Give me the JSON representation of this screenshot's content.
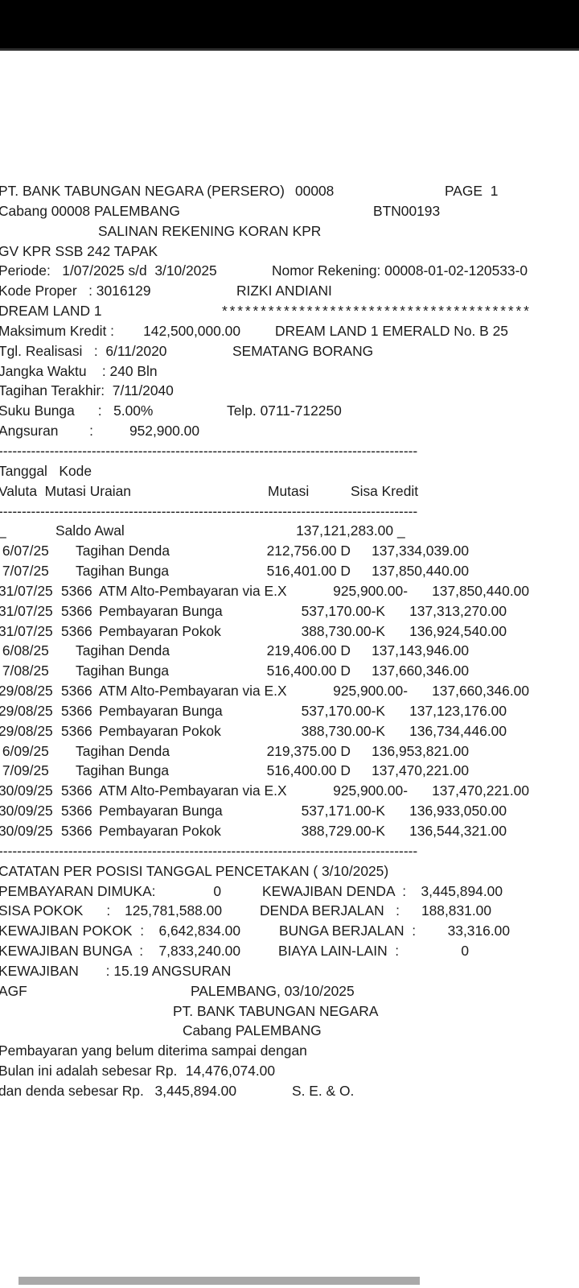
{
  "colors": {
    "status_bar": "#000000",
    "page_bg": "#ffffff",
    "text": "#1b1b1b",
    "scrollbar_thumb": "#a9a9a9"
  },
  "doc": {
    "header": {
      "bank_name": "PT. BANK TABUNGAN NEGARA (PERSERO)",
      "branch_code": "00008",
      "page_label": "PAGE  1",
      "branch_line": "Cabang 00008 PALEMBANG",
      "doc_code": "BTN00193",
      "title": "SALINAN REKENING KORAN KPR",
      "product_line": "GV KPR SSB 242 TAPAK",
      "periode": "Periode:   1/07/2025 s/d  3/10/2025",
      "nomor_rekening": "Nomor Rekening: 00008-01-02-120533-0",
      "kode_proper": "Kode Proper   : 3016129",
      "customer_name": "RIZKI ANDIANI",
      "project_name": "DREAM LAND 1",
      "stars": "****************************************",
      "maksimum_kredit_label": "Maksimum Kredit :",
      "maksimum_kredit_value": "142,500,000.00",
      "address_line1": "DREAM LAND 1 EMERALD No. B 25",
      "tgl_realisasi": "Tgl. Realisasi   :  6/11/2020",
      "address_line2": "SEMATANG BORANG",
      "jangka_waktu": "Jangka Waktu    : 240 Bln",
      "tagihan_terakhir": "Tagihan Terakhir:  7/11/2040",
      "suku_bunga": "Suku Bunga      :   5.00%",
      "telp": "Telp. 0711-712250",
      "angsuran_label": "Angsuran        :",
      "angsuran_value": "952,900.00"
    },
    "table": {
      "divider": "------------------------------------------------------------------------------------------",
      "col_header1": "Tanggal   Kode",
      "col_header2": "Valuta  Mutasi Uraian",
      "col_mutasi": "Mutasi",
      "col_sisa": "Sisa Kredit"
    },
    "transactions": [
      {
        "date": "",
        "kode": "",
        "uraian": "Saldo Awal",
        "mutasi": "",
        "sisa": "137,121,283.00",
        "prefix": "_",
        "suffix": "_",
        "type": "saldo"
      },
      {
        "date": " 6/07/25",
        "kode": "",
        "uraian": "Tagihan Denda",
        "mutasi": "212,756.00 D",
        "sisa": "137,334,039.00",
        "type": "tagihan"
      },
      {
        "date": " 7/07/25",
        "kode": "",
        "uraian": "Tagihan Bunga",
        "mutasi": "516,401.00 D",
        "sisa": "137,850,440.00",
        "type": "tagihan"
      },
      {
        "date": "31/07/25",
        "kode": "5366",
        "uraian": "ATM Alto-Pembayaran via E.X",
        "mutasi": "925,900.00-",
        "sisa": "137,850,440.00",
        "type": "atm"
      },
      {
        "date": "31/07/25",
        "kode": "5366",
        "uraian": "Pembayaran Bunga",
        "mutasi": "537,170.00-K",
        "sisa": "137,313,270.00",
        "type": "bayar"
      },
      {
        "date": "31/07/25",
        "kode": "5366",
        "uraian": "Pembayaran Pokok",
        "mutasi": "388,730.00-K",
        "sisa": "136,924,540.00",
        "type": "bayar"
      },
      {
        "date": " 6/08/25",
        "kode": "",
        "uraian": "Tagihan Denda",
        "mutasi": "219,406.00 D",
        "sisa": "137,143,946.00",
        "type": "tagihan"
      },
      {
        "date": " 7/08/25",
        "kode": "",
        "uraian": "Tagihan Bunga",
        "mutasi": "516,400.00 D",
        "sisa": "137,660,346.00",
        "type": "tagihan"
      },
      {
        "date": "29/08/25",
        "kode": "5366",
        "uraian": "ATM Alto-Pembayaran via E.X",
        "mutasi": "925,900.00-",
        "sisa": "137,660,346.00",
        "type": "atm"
      },
      {
        "date": "29/08/25",
        "kode": "5366",
        "uraian": "Pembayaran Bunga",
        "mutasi": "537,170.00-K",
        "sisa": "137,123,176.00",
        "type": "bayar"
      },
      {
        "date": "29/08/25",
        "kode": "5366",
        "uraian": "Pembayaran Pokok",
        "mutasi": "388,730.00-K",
        "sisa": "136,734,446.00",
        "type": "bayar"
      },
      {
        "date": " 6/09/25",
        "kode": "",
        "uraian": "Tagihan Denda",
        "mutasi": "219,375.00 D",
        "sisa": "136,953,821.00",
        "type": "tagihan"
      },
      {
        "date": " 7/09/25",
        "kode": "",
        "uraian": "Tagihan Bunga",
        "mutasi": "516,400.00 D",
        "sisa": "137,470,221.00",
        "type": "tagihan"
      },
      {
        "date": "30/09/25",
        "kode": "5366",
        "uraian": "ATM Alto-Pembayaran via E.X",
        "mutasi": "925,900.00-",
        "sisa": "137,470,221.00",
        "type": "atm"
      },
      {
        "date": "30/09/25",
        "kode": "5366",
        "uraian": "Pembayaran Bunga",
        "mutasi": "537,171.00-K",
        "sisa": "136,933,050.00",
        "type": "bayar"
      },
      {
        "date": "30/09/25",
        "kode": "5366",
        "uraian": "Pembayaran Pokok",
        "mutasi": "388,729.00-K",
        "sisa": "136,544,321.00",
        "type": "bayar"
      }
    ],
    "summary": {
      "catatan_title": "CATATAN PER POSISI TANGGAL PENCETAKAN ( 3/10/2025)",
      "pembayaran_dimuka_label": "PEMBAYARAN DIMUKA:",
      "pembayaran_dimuka_value": "0",
      "kewajiban_denda_label": "KEWAJIBAN DENDA  :",
      "kewajiban_denda_value": "3,445,894.00",
      "sisa_pokok_label": "SISA POKOK      :",
      "sisa_pokok_value": "125,781,588.00",
      "denda_berjalan_label": "DENDA BERJALAN   :",
      "denda_berjalan_value": "188,831.00",
      "kewajiban_pokok_label": "KEWAJIBAN POKOK  :",
      "kewajiban_pokok_value": "6,642,834.00",
      "bunga_berjalan_label": "BUNGA BERJALAN  :",
      "bunga_berjalan_value": "33,316.00",
      "kewajiban_bunga_label": "KEWAJIBAN BUNGA  :",
      "kewajiban_bunga_value": "7,833,240.00",
      "biaya_lain_label": "BIAYA LAIN-LAIN  :",
      "biaya_lain_value": "0",
      "kewajiban_angsuran": "KEWAJIBAN       : 15.19 ANGSURAN"
    },
    "footer": {
      "agf": "AGF",
      "place_date": "PALEMBANG, 03/10/2025",
      "bank_name": "PT. BANK TABUNGAN NEGARA",
      "branch": "Cabang PALEMBANG",
      "note_line1": "Pembayaran yang belum diterima sampai dengan",
      "note_line2_label": "Bulan ini adalah sebesar Rp.",
      "note_line2_value": "14,476,074.00",
      "note_line3_label": "dan denda sebesar Rp.",
      "note_line3_value": "3,445,894.00",
      "seo": "S. E. & O."
    }
  }
}
